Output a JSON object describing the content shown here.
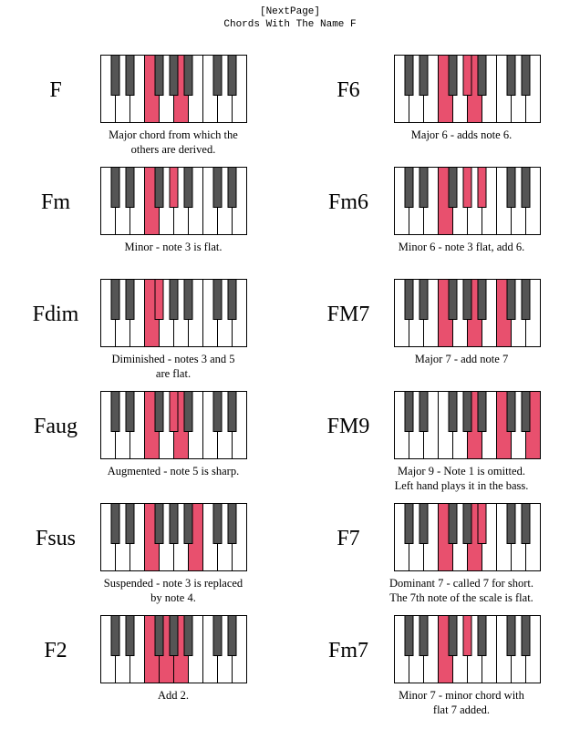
{
  "header": {
    "next_page": "[NextPage]",
    "title": "Chords With The Name F"
  },
  "colors": {
    "highlight": "#e8506e",
    "white_key": "#ffffff",
    "black_key": "#555555",
    "outline": "#000000"
  },
  "chords": [
    {
      "name": "F",
      "line1": "Major chord from which the",
      "line2": "others are derived.",
      "white": [
        3,
        5
      ],
      "black": [
        2
      ]
    },
    {
      "name": "F6",
      "line1": "Major 6 - adds note 6.",
      "line2": "",
      "white": [
        3,
        5
      ],
      "black": [
        2,
        4
      ]
    },
    {
      "name": "Fm",
      "line1": "Minor - note 3 is flat.",
      "line2": "",
      "white": [
        3
      ],
      "black": [
        2,
        4
      ]
    },
    {
      "name": "Fm6",
      "line1": "Minor 6 - note 3 flat, add 6.",
      "line2": "",
      "white": [
        3
      ],
      "black": [
        2,
        4,
        5
      ]
    },
    {
      "name": "Fdim",
      "line1": "Diminished - notes 3 and 5",
      "line2": "are flat.",
      "white": [
        3
      ],
      "black": [
        2,
        3
      ]
    },
    {
      "name": "FM7",
      "line1": "Major 7 - add note 7",
      "line2": "",
      "white": [
        3,
        5,
        7
      ],
      "black": [
        2
      ]
    },
    {
      "name": "Faug",
      "line1": "Augmented - note 5 is sharp.",
      "line2": "",
      "white": [
        3,
        5
      ],
      "black": [
        4
      ]
    },
    {
      "name": "FM9",
      "line1": "Major 9 - Note 1 is omitted.",
      "line2": "Left hand plays it in the bass.",
      "white": [
        5,
        7,
        9
      ],
      "black": [
        6
      ]
    },
    {
      "name": "Fsus",
      "line1": "Suspended - note 3 is replaced",
      "line2": "by note 4.",
      "white": [
        3,
        6
      ],
      "black": []
    },
    {
      "name": "F7",
      "line1": "Dominant 7 - called 7 for short.",
      "line2": "The 7th note of the scale is flat.",
      "white": [
        3,
        5
      ],
      "black": [
        2,
        5
      ]
    },
    {
      "name": "F2",
      "line1": "Add 2.",
      "line2": "",
      "white": [
        3,
        4,
        5
      ],
      "black": [
        2
      ]
    },
    {
      "name": "Fm7",
      "line1": "Minor 7 - minor chord with",
      "line2": "flat 7 added.",
      "white": [
        3
      ],
      "black": [
        2,
        4,
        6
      ]
    }
  ]
}
